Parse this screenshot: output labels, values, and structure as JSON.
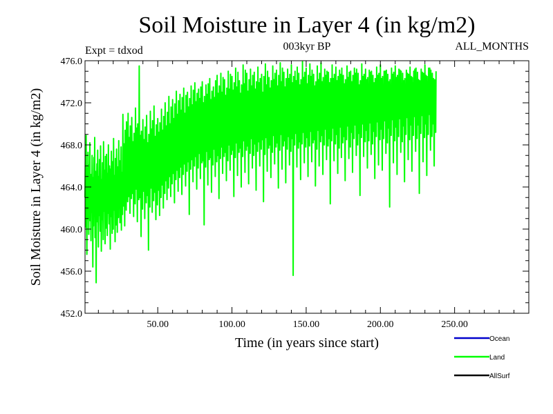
{
  "chart_data": {
    "type": "line",
    "title": "Soil Moisture in Layer 4 (in kg/m2)",
    "subtitle_left": "Expt = tdxod",
    "subtitle_center": "003kyr BP",
    "subtitle_right": "ALL_MONTHS",
    "xlabel": "Time (in years since start)",
    "ylabel": "Soil Moisture in Layer 4 (in kg/m2)",
    "xlim": [
      1,
      300
    ],
    "ylim": [
      452.0,
      476.0
    ],
    "x_ticks": [
      50,
      100,
      150,
      200,
      250
    ],
    "x_tick_labels": [
      "50.00",
      "100.00",
      "150.00",
      "200.00",
      "250.00"
    ],
    "y_ticks": [
      452,
      456,
      460,
      464,
      468,
      472,
      476
    ],
    "y_tick_labels": [
      "452.0",
      "456.0",
      "460.0",
      "464.0",
      "468.0",
      "472.0",
      "476.0"
    ],
    "legend_position": "bottom-right",
    "series": [
      {
        "name": "Ocean",
        "color": "#0000cc",
        "x": [],
        "values": []
      },
      {
        "name": "Land",
        "color": "#00ff00",
        "x_start": 1,
        "x_step": 0.25,
        "values": [
          463.0,
          466.5,
          460.2,
          468.9,
          462.1,
          457.6,
          465.8,
          461.0,
          467.3,
          463.9,
          459.5,
          466.1,
          462.7,
          468.2,
          460.8,
          464.4,
          458.9,
          465.2,
          461.6,
          467.0,
          463.3,
          456.4,
          464.9,
          460.3,
          466.8,
          462.0,
          468.7,
          459.2,
          465.5,
          461.9,
          454.9,
          463.6,
          466.2,
          460.7,
          467.5,
          462.4,
          458.3,
          465.0,
          461.3,
          466.6,
          463.1,
          459.8,
          467.9,
          462.6,
          457.9,
          464.7,
          460.9,
          466.3,
          462.9,
          459.0,
          468.3,
          461.7,
          465.6,
          463.4,
          458.6,
          466.9,
          462.2,
          460.1,
          467.1,
          463.7,
          459.4,
          465.3,
          461.5,
          468.0,
          462.8,
          460.5,
          466.0,
          463.2,
          458.1,
          465.7,
          461.2,
          467.4,
          463.8,
          459.6,
          466.4,
          462.5,
          460.0,
          468.6,
          461.8,
          465.1,
          463.5,
          458.8,
          466.7,
          462.3,
          460.4,
          467.6,
          464.1,
          459.7,
          465.9,
          462.0,
          461.1,
          468.4,
          463.0,
          466.5,
          460.6,
          464.8,
          462.7,
          467.8,
          459.9,
          465.4,
          463.3,
          461.4,
          470.9,
          464.6,
          462.2,
          468.1,
          465.2,
          460.3,
          469.4,
          463.7,
          466.9,
          461.8,
          470.2,
          464.0,
          467.3,
          462.6,
          471.0,
          465.5,
          463.1,
          468.7,
          466.0,
          461.5,
          469.8,
          464.4,
          467.6,
          462.9,
          470.6,
          465.9,
          463.4,
          468.3,
          466.5,
          461.2,
          469.1,
          464.8,
          468.0,
          462.4,
          471.5,
          466.2,
          463.8,
          469.6,
          465.1,
          460.7,
          470.0,
          464.3,
          467.9,
          462.8,
          475.5,
          466.7,
          463.0,
          468.9,
          465.4,
          459.3,
          469.3,
          464.6,
          467.2,
          461.9,
          470.4,
          466.1,
          463.6,
          468.5,
          465.7,
          461.0,
          469.7,
          464.9,
          467.5,
          462.5,
          470.8,
          466.4,
          463.2,
          468.2,
          465.0,
          458.0,
          469.0,
          464.2,
          467.8,
          462.1,
          471.2,
          466.8,
          463.9,
          469.5,
          465.6,
          461.6,
          470.3,
          464.7,
          468.4,
          462.7,
          471.7,
          466.0,
          463.5,
          468.8,
          465.3,
          460.9,
          469.9,
          464.5,
          467.4,
          462.3,
          470.5,
          466.6,
          463.7,
          469.2,
          465.8,
          461.3,
          470.1,
          464.1,
          468.6,
          463.0,
          471.4,
          466.3,
          464.2,
          469.4,
          465.9,
          462.0,
          470.7,
          465.0,
          468.1,
          463.4,
          472.0,
          466.9,
          464.6,
          469.8,
          466.1,
          462.8,
          471.1,
          465.4,
          468.7,
          463.9,
          472.6,
          467.2,
          465.0,
          470.0,
          466.5,
          463.1,
          471.6,
          465.8,
          469.3,
          464.3,
          472.3,
          467.6,
          465.3,
          470.5,
          466.8,
          462.5,
          471.9,
          466.0,
          469.6,
          464.7,
          473.1,
          467.9,
          465.6,
          470.9,
          467.0,
          463.6,
          472.2,
          466.3,
          469.0,
          464.9,
          472.8,
          468.2,
          465.9,
          471.3,
          467.4,
          463.3,
          472.5,
          466.7,
          469.9,
          465.2,
          473.4,
          468.5,
          466.2,
          471.0,
          467.7,
          464.1,
          472.7,
          466.1,
          470.2,
          465.5,
          473.0,
          468.0,
          466.4,
          471.6,
          467.3,
          461.4,
          472.4,
          467.1,
          470.6,
          465.7,
          473.6,
          468.8,
          466.6,
          471.8,
          467.9,
          464.5,
          473.2,
          467.5,
          470.8,
          466.0,
          473.9,
          468.4,
          466.9,
          472.1,
          468.1,
          463.8,
          472.9,
          466.8,
          470.4,
          465.8,
          473.3,
          469.0,
          467.2,
          472.4,
          468.3,
          464.8,
          473.5,
          467.8,
          471.2,
          466.3,
          474.0,
          468.7,
          466.5,
          472.0,
          467.6,
          460.4,
          472.6,
          467.0,
          470.7,
          465.9,
          473.7,
          469.1,
          467.4,
          472.8,
          468.6,
          464.2,
          473.8,
          467.4,
          471.0,
          466.6,
          474.3,
          468.9,
          466.8,
          472.3,
          467.9,
          463.5,
          473.1,
          467.7,
          471.4,
          466.1,
          473.5,
          469.3,
          467.6,
          472.5,
          468.2,
          465.0,
          474.1,
          467.2,
          470.9,
          466.4,
          474.6,
          469.5,
          467.0,
          472.9,
          468.8,
          462.9,
          473.6,
          468.0,
          471.7,
          466.7,
          474.8,
          469.8,
          467.8,
          473.0,
          468.4,
          465.3,
          474.4,
          467.6,
          471.1,
          466.9,
          474.2,
          469.2,
          467.3,
          472.7,
          468.7,
          464.6,
          473.4,
          468.3,
          471.9,
          466.5,
          475.0,
          469.6,
          468.0,
          473.3,
          468.9,
          465.6,
          474.7,
          467.9,
          471.5,
          467.1,
          474.5,
          469.9,
          467.5,
          473.2,
          468.5,
          463.1,
          473.9,
          468.5,
          472.1,
          466.8,
          475.3,
          470.0,
          468.2,
          473.5,
          469.1,
          465.1,
          474.9,
          468.1,
          471.8,
          467.3,
          474.1,
          469.4,
          467.7,
          472.9,
          468.6,
          464.0,
          473.7,
          468.7,
          472.4,
          466.9,
          475.6,
          470.2,
          468.4,
          473.8,
          469.3,
          465.4,
          475.1,
          468.4,
          472.0,
          467.5,
          474.8,
          469.7,
          467.9,
          473.1,
          468.9,
          464.3,
          474.2,
          468.8,
          472.6,
          467.2,
          475.2,
          470.4,
          468.6,
          473.6,
          469.0,
          465.8,
          474.6,
          468.2,
          472.2,
          467.0,
          474.9,
          469.5,
          468.1,
          473.3,
          469.2,
          463.7,
          474.0,
          468.9,
          472.3,
          467.4,
          475.4,
          470.1,
          468.3,
          473.9,
          469.4,
          466.0,
          474.3,
          468.6,
          471.6,
          467.6,
          474.7,
          469.8,
          468.5,
          473.0,
          468.8,
          462.6,
          474.5,
          469.1,
          472.7,
          467.1,
          475.7,
          470.3,
          468.7,
          473.7,
          469.6,
          465.5,
          475.0,
          468.3,
          472.5,
          467.7,
          474.4,
          469.9,
          468.0,
          473.4,
          469.1,
          464.9,
          474.1,
          469.2,
          472.8,
          467.3,
          475.5,
          470.6,
          468.9,
          474.2,
          469.7,
          466.2,
          474.8,
          468.7,
          472.1,
          467.8,
          475.1,
          470.0,
          468.2,
          473.6,
          469.3,
          463.9,
          474.6,
          469.4,
          473.0,
          467.5,
          475.8,
          470.5,
          469.0,
          474.0,
          469.8,
          465.7,
          475.3,
          468.5,
          472.4,
          467.9,
          474.9,
          470.2,
          468.4,
          473.5,
          469.5,
          464.4,
          474.3,
          469.0,
          472.9,
          467.6,
          475.2,
          470.7,
          468.8,
          474.3,
          469.9,
          466.1,
          474.7,
          468.9,
          472.6,
          467.4,
          475.6,
          470.4,
          468.6,
          473.9,
          469.6,
          455.6,
          474.5,
          469.3,
          473.1,
          468.0,
          475.0,
          470.8,
          469.1,
          474.1,
          470.0,
          465.9,
          475.4,
          468.6,
          472.3,
          467.7,
          474.8,
          470.1,
          468.3,
          473.7,
          469.4,
          464.7,
          474.2,
          469.5,
          472.8,
          468.1,
          475.9,
          470.9,
          469.2,
          474.4,
          470.1,
          466.3,
          474.9,
          468.8,
          472.5,
          467.8,
          475.3,
          470.3,
          468.7,
          473.8,
          469.8,
          465.0,
          474.6,
          469.1,
          473.2,
          467.9,
          475.7,
          471.0,
          469.3,
          474.5,
          470.2,
          466.4,
          475.1,
          468.4,
          472.2,
          468.2,
          474.7,
          470.5,
          468.5,
          473.6,
          469.7,
          464.1,
          474.0,
          469.6,
          473.0,
          467.6,
          475.5,
          470.6,
          469.4,
          474.2,
          470.3,
          466.0,
          474.8,
          469.0,
          472.7,
          468.3,
          475.8,
          470.2,
          468.9,
          474.0,
          469.9,
          465.2,
          474.4,
          469.2,
          473.3,
          468.0,
          475.2,
          471.1,
          469.5,
          474.6,
          470.4,
          466.6,
          475.0,
          468.7,
          472.4,
          467.9,
          474.9,
          470.7,
          468.6,
          473.9,
          469.5,
          462.4,
          474.3,
          469.7,
          473.1,
          468.4,
          475.6,
          470.4,
          469.6,
          474.3,
          470.5,
          466.5,
          474.7,
          468.9,
          472.9,
          468.1,
          475.4,
          470.0,
          469.0,
          474.1,
          470.0,
          465.3,
          474.5,
          469.4,
          473.4,
          467.7,
          475.1,
          471.2,
          469.7,
          474.7,
          470.6,
          466.8,
          475.3,
          468.6,
          472.6,
          468.2,
          474.6,
          470.8,
          468.8,
          473.8,
          469.8,
          464.6,
          474.2,
          469.8,
          473.0,
          468.5,
          475.5,
          470.3,
          469.8,
          474.4,
          470.7,
          466.7,
          474.9,
          469.1,
          472.8,
          467.8,
          475.0,
          470.1,
          469.2,
          474.0,
          470.1,
          465.4,
          474.6,
          469.5,
          473.5,
          468.6,
          475.3,
          471.3,
          469.9,
          474.8,
          470.8,
          467.0,
          475.2,
          468.8,
          472.5,
          468.0,
          474.8,
          470.9,
          469.1,
          473.7,
          469.9,
          463.2,
          474.1,
          469.9,
          473.2,
          468.7,
          475.7,
          470.5,
          470.0,
          474.5,
          470.9,
          466.9,
          474.7,
          469.3,
          473.0,
          468.3,
          475.2,
          470.2,
          469.4,
          474.2,
          470.2,
          465.8,
          474.4,
          469.6,
          473.6,
          468.4,
          475.1,
          471.4,
          470.1,
          474.9,
          471.0,
          467.1,
          475.0,
          469.0,
          472.7,
          468.1,
          474.6,
          471.0,
          469.3,
          473.9,
          470.0,
          464.8,
          474.3,
          470.0,
          473.3,
          468.8,
          475.4,
          470.6,
          470.2,
          474.6,
          471.1,
          466.1,
          474.8,
          469.4,
          473.1,
          468.5,
          475.6,
          470.3,
          469.5,
          474.3,
          470.3,
          465.6,
          474.5,
          469.7,
          473.7,
          468.6,
          475.0,
          471.5,
          470.3,
          475.0,
          471.2,
          467.2,
          475.1,
          469.2,
          472.9,
          468.2,
          474.7,
          471.1,
          469.6,
          474.0,
          470.1,
          462.1,
          474.2,
          470.1,
          473.4,
          468.9,
          475.3,
          470.7,
          470.4,
          474.7,
          471.3,
          466.3,
          474.9,
          469.5,
          473.2,
          468.4,
          475.5,
          470.4,
          469.7,
          474.4,
          470.4,
          465.2,
          474.6,
          469.8,
          473.8,
          468.8,
          475.2,
          471.6,
          470.5,
          475.1,
          471.4,
          467.3,
          475.0,
          469.3,
          472.8,
          468.3,
          474.8,
          471.2,
          469.8,
          474.1,
          470.2,
          464.5,
          474.3,
          470.2,
          473.5,
          469.0,
          475.1,
          470.8,
          470.6,
          474.8,
          471.5,
          466.6,
          474.7,
          469.6,
          473.3,
          468.5,
          475.4,
          470.5,
          469.9,
          474.5,
          470.5,
          465.5,
          474.4,
          469.9,
          473.9,
          468.9,
          475.0,
          471.7,
          470.7,
          475.2,
          471.6,
          467.4,
          475.3,
          469.4,
          473.0,
          468.6,
          474.9,
          471.3,
          469.9,
          474.2,
          470.3,
          463.4,
          474.1,
          470.3,
          473.6,
          469.1,
          475.2,
          470.9,
          470.8,
          474.9,
          471.7,
          466.4,
          474.8,
          469.7,
          473.4,
          468.7,
          475.6,
          470.6,
          470.0,
          474.6,
          470.6,
          465.1,
          474.5,
          470.0,
          474.0,
          469.0,
          475.3,
          471.8,
          470.9,
          475.3,
          471.8,
          467.5,
          475.1,
          469.5,
          473.1,
          468.8,
          474.8,
          471.4,
          470.0,
          474.3,
          470.4,
          466.0,
          474.2,
          470.4,
          473.7,
          469.2,
          475.0
        ]
      },
      {
        "name": "AllSurf",
        "color": "#000000",
        "x": [],
        "values": []
      }
    ]
  }
}
